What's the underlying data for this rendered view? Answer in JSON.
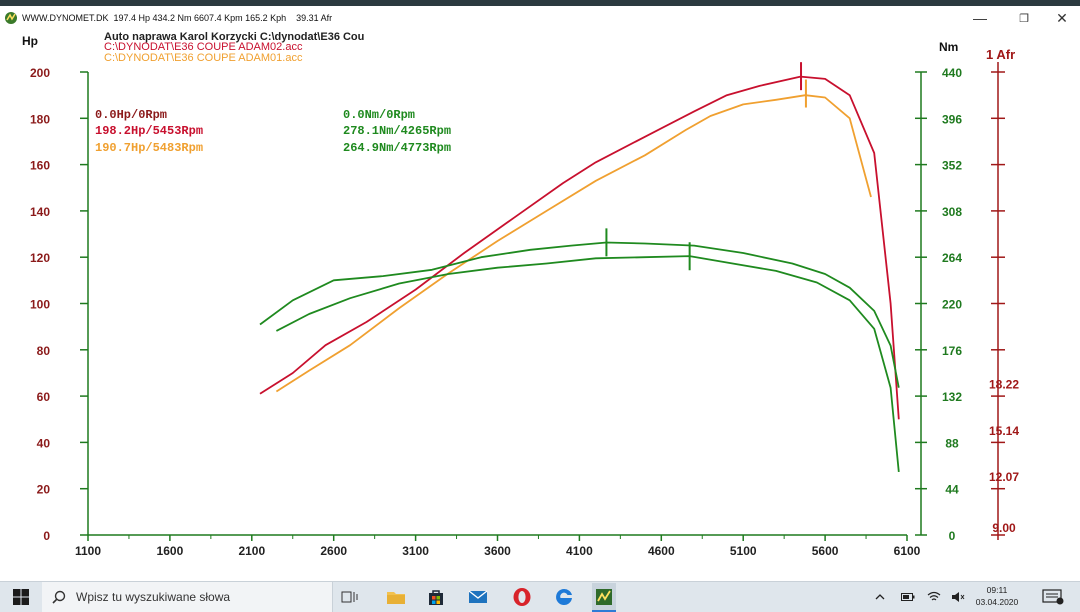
{
  "window": {
    "title": "WWW.DYNOMET.DK  197.4 Hp 434.2 Nm 6607.4 Kpm 165.2 Kph    39.31 Afr",
    "controls": {
      "minimize": "—",
      "maximize": "❐",
      "close": "✕"
    }
  },
  "chart_header": {
    "shop": "Auto naprawa Karol Korzycki     C:\\dynodat\\E36 Cou",
    "run1_file": "C:\\DYNODAT\\E36 COUPE ADAM02.acc",
    "run2_file": "C:\\DYNODAT\\E36 COUPE ADAM01.acc"
  },
  "colors": {
    "red": "#c8102e",
    "orange": "#f0a030",
    "green": "#1f8a1f",
    "axis": "#1f7a1f",
    "afr": "#a01818"
  },
  "summary": {
    "hp_ref": "0.0Hp/0Rpm",
    "hp_run1": "198.2Hp/5453Rpm",
    "hp_run2": "190.7Hp/5483Rpm",
    "nm_ref": "0.0Nm/0Rpm",
    "nm_run1": "278.1Nm/4265Rpm",
    "nm_run2": "264.9Nm/4773Rpm"
  },
  "chart_data": {
    "type": "line",
    "xlabel": "",
    "x_ticks": [
      1100,
      1600,
      2100,
      2600,
      3100,
      3600,
      4100,
      4600,
      5100,
      5600,
      6100
    ],
    "xlim": [
      1100,
      6100
    ],
    "left_axis": {
      "label": "Hp",
      "ticks": [
        0,
        20,
        40,
        60,
        80,
        100,
        120,
        140,
        160,
        180,
        200
      ],
      "ylim": [
        0,
        200
      ]
    },
    "right_axis": {
      "label": "Nm",
      "ticks": [
        0,
        44,
        88,
        132,
        176,
        220,
        264,
        308,
        352,
        396,
        440
      ],
      "ylim": [
        0,
        440
      ]
    },
    "afr_axis": {
      "label": "1 Afr",
      "ticks": [
        "9.00",
        "12.07",
        "15.14",
        "18.22"
      ]
    },
    "grid": false,
    "series": [
      {
        "name": "C:\\DYNODAT\\E36 COUPE ADAM02.acc",
        "quantity": "Hp",
        "color": "#c8102e",
        "x": [
          2150,
          2350,
          2550,
          2800,
          3100,
          3400,
          3700,
          4000,
          4200,
          4500,
          4800,
          5000,
          5200,
          5450,
          5600,
          5750,
          5900,
          6000,
          6050
        ],
        "y": [
          61,
          70,
          82,
          92,
          106,
          122,
          137,
          152,
          161,
          172,
          183,
          190,
          194,
          198,
          197,
          190,
          165,
          100,
          50
        ]
      },
      {
        "name": "C:\\DYNODAT\\E36 COUPE ADAM01.acc",
        "quantity": "Hp",
        "color": "#f0a030",
        "x": [
          2250,
          2450,
          2700,
          3000,
          3300,
          3600,
          3900,
          4200,
          4500,
          4750,
          4900,
          5100,
          5300,
          5480,
          5600,
          5750,
          5880
        ],
        "y": [
          62,
          71,
          82,
          98,
          113,
          127,
          140,
          153,
          164,
          175,
          181,
          186,
          188,
          190,
          189,
          180,
          146
        ]
      },
      {
        "name": "C:\\DYNODAT\\E36 COUPE ADAM02.acc",
        "quantity": "Nm",
        "color": "#1f8a1f",
        "x": [
          2150,
          2350,
          2600,
          2900,
          3200,
          3500,
          3800,
          4050,
          4265,
          4500,
          4800,
          5100,
          5400,
          5600,
          5750,
          5900,
          6000,
          6050
        ],
        "y": [
          200,
          223,
          242,
          246,
          252,
          264,
          271,
          275,
          278,
          277,
          275,
          268,
          258,
          248,
          235,
          213,
          180,
          140
        ]
      },
      {
        "name": "C:\\DYNODAT\\E36 COUPE ADAM01.acc",
        "quantity": "Nm",
        "color": "#1f8a1f",
        "x": [
          2250,
          2450,
          2700,
          3000,
          3300,
          3600,
          3900,
          4200,
          4500,
          4773,
          5000,
          5300,
          5550,
          5750,
          5900,
          6000,
          6050
        ],
        "y": [
          194,
          210,
          225,
          239,
          248,
          254,
          258,
          263,
          264,
          265,
          259,
          251,
          240,
          223,
          196,
          140,
          60
        ]
      }
    ],
    "peak_markers": [
      {
        "x": 5453,
        "y": 198.2,
        "axis": "Hp",
        "color": "#c8102e"
      },
      {
        "x": 5483,
        "y": 190.7,
        "axis": "Hp",
        "color": "#f0a030"
      },
      {
        "x": 4265,
        "y": 278.1,
        "axis": "Nm",
        "color": "#1f8a1f"
      },
      {
        "x": 4773,
        "y": 264.9,
        "axis": "Nm",
        "color": "#1f8a1f"
      }
    ]
  },
  "taskbar": {
    "search_placeholder": "Wpisz tu wyszukiwane słowa",
    "time": "09:11",
    "date": "03.04.2020",
    "icons": [
      "windows-start-icon",
      "search-icon",
      "task-view-icon",
      "file-explorer-icon",
      "store-icon",
      "mail-icon",
      "opera-icon",
      "edge-icon",
      "dynomet-app-icon"
    ]
  }
}
